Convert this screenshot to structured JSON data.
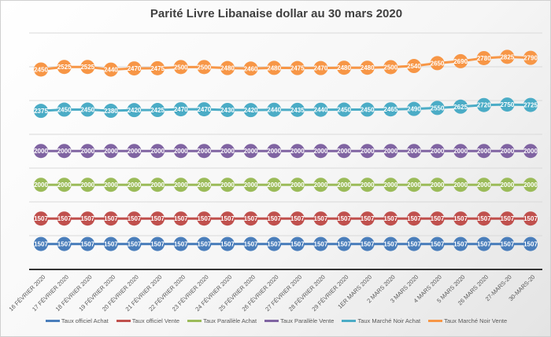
{
  "chart_data": {
    "type": "line",
    "stacked": true,
    "title": "Parité Livre Libanaise dollar au 30 mars 2020",
    "xlabel": "",
    "ylabel": "",
    "ylim": [
      0,
      14000
    ],
    "y_axis_visible": false,
    "grid": true,
    "legend_position": "bottom",
    "data_labels": true,
    "categories": [
      "16 FÉVRIER 2020",
      "17 FÉVRIER 2020",
      "18 FÉVRIER 2020",
      "19 FÉVRIER 2020",
      "20 FÉVRIER 2020",
      "21 FÉVRIER 2020",
      "22 FÉVRIER 2020",
      "23 FÉVRIER 2020",
      "24 FÉVRIER 2020",
      "25 FÉVRIER 2020",
      "26 FÉVRIER 2020",
      "27 FÉVRIER 2020",
      "28 FÉVRIER 2020",
      "29 FÉVRIER 2020",
      "1ER MARS 2020",
      "2 MARS 2020",
      "3 MARS 2020",
      "4 MARS 2020",
      "5 MARS 2020",
      "26 MARS 2020",
      "27-MARS-20",
      "30-MARS-20"
    ],
    "series": [
      {
        "name": "Taux officiel Achat",
        "color": "#4a7ebb",
        "values": [
          1507,
          1507,
          1507,
          1507,
          1507,
          1507,
          1507,
          1507,
          1507,
          1507,
          1507,
          1507,
          1507,
          1507,
          1507,
          1507,
          1507,
          1507,
          1507,
          1507,
          1507,
          1507
        ]
      },
      {
        "name": "Taux officiel Vente",
        "color": "#c0504d",
        "values": [
          1507,
          1507,
          1507,
          1507,
          1507,
          1507,
          1507,
          1507,
          1507,
          1507,
          1507,
          1507,
          1507,
          1507,
          1507,
          1507,
          1507,
          1507,
          1507,
          1507,
          1507,
          1507
        ]
      },
      {
        "name": "Taux Parallèle Achat",
        "color": "#9bbb59",
        "values": [
          2000,
          2000,
          2000,
          2000,
          2000,
          2000,
          2000,
          2000,
          2000,
          2000,
          2000,
          2000,
          2000,
          2000,
          2000,
          2000,
          2000,
          2000,
          2000,
          2000,
          2000,
          2000
        ]
      },
      {
        "name": "Taux Parallèle Vente",
        "color": "#8064a2",
        "values": [
          2000,
          2000,
          2000,
          2000,
          2000,
          2000,
          2000,
          2000,
          2000,
          2000,
          2000,
          2000,
          2000,
          2000,
          2000,
          2000,
          2000,
          2000,
          2000,
          2000,
          2000,
          2000
        ]
      },
      {
        "name": "Taux Marché Noir Achat",
        "color": "#4bacc6",
        "values": [
          2375,
          2450,
          2450,
          2380,
          2420,
          2425,
          2470,
          2470,
          2430,
          2420,
          2440,
          2435,
          2440,
          2450,
          2450,
          2465,
          2490,
          2550,
          2625,
          2720,
          2750,
          2725
        ]
      },
      {
        "name": "Taux Marché Noir Vente",
        "color": "#f79646",
        "values": [
          2450,
          2525,
          2525,
          2440,
          2470,
          2475,
          2500,
          2500,
          2480,
          2460,
          2480,
          2475,
          2470,
          2480,
          2480,
          2500,
          2540,
          2650,
          2690,
          2780,
          2825,
          2790
        ]
      }
    ]
  }
}
